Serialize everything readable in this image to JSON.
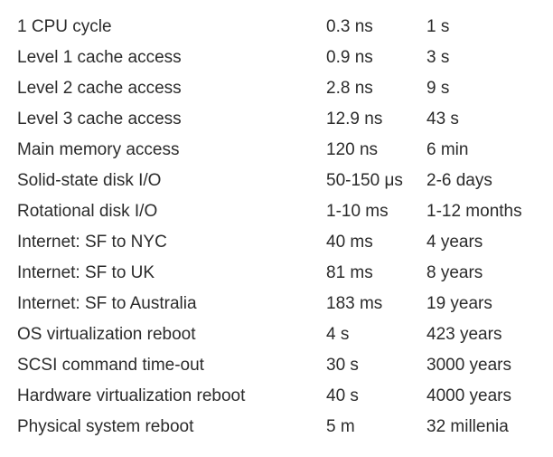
{
  "rows": [
    {
      "operation": "1 CPU cycle",
      "actual": "0.3 ns",
      "scaled": "1 s"
    },
    {
      "operation": "Level 1 cache access",
      "actual": "0.9 ns",
      "scaled": "3 s"
    },
    {
      "operation": "Level 2 cache access",
      "actual": "2.8 ns",
      "scaled": "9 s"
    },
    {
      "operation": "Level 3 cache access",
      "actual": "12.9 ns",
      "scaled": "43 s"
    },
    {
      "operation": "Main memory access",
      "actual": "120 ns",
      "scaled": "6 min"
    },
    {
      "operation": "Solid-state disk I/O",
      "actual": "50-150 μs",
      "scaled": "2-6 days"
    },
    {
      "operation": "Rotational disk I/O",
      "actual": "1-10 ms",
      "scaled": "1-12 months"
    },
    {
      "operation": "Internet: SF to NYC",
      "actual": "40 ms",
      "scaled": "4 years"
    },
    {
      "operation": "Internet: SF to UK",
      "actual": "81 ms",
      "scaled": "8 years"
    },
    {
      "operation": "Internet: SF to Australia",
      "actual": "183 ms",
      "scaled": "19 years"
    },
    {
      "operation": "OS virtualization reboot",
      "actual": "4 s",
      "scaled": "423 years"
    },
    {
      "operation": "SCSI command time-out",
      "actual": "30 s",
      "scaled": "3000 years"
    },
    {
      "operation": "Hardware virtualization reboot",
      "actual": "40 s",
      "scaled": "4000 years"
    },
    {
      "operation": "Physical system reboot",
      "actual": "5 m",
      "scaled": "32 millenia"
    }
  ]
}
